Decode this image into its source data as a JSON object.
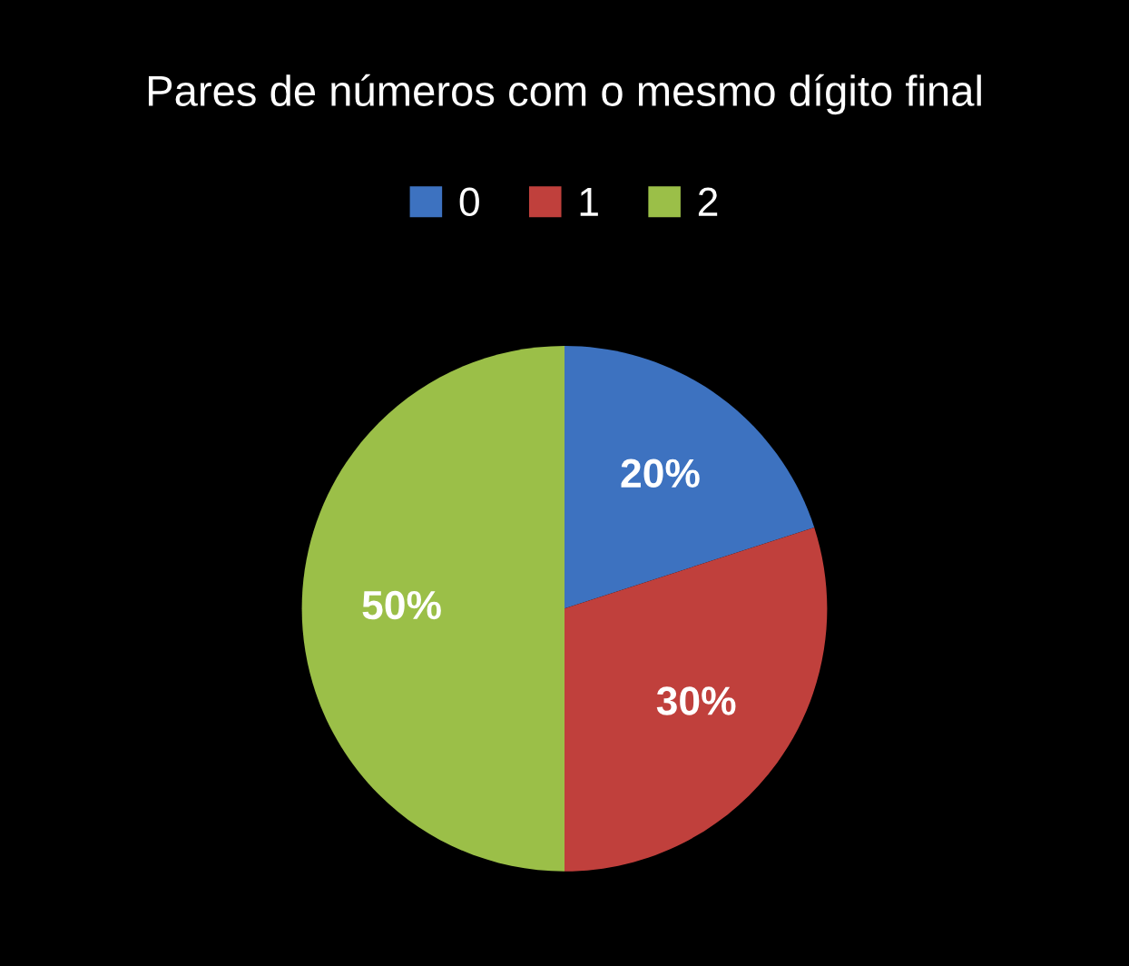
{
  "chart_data": {
    "type": "pie",
    "title": "Pares de números com o mesmo dígito final",
    "categories": [
      "0",
      "1",
      "2"
    ],
    "values": [
      20,
      30,
      50
    ],
    "colors": [
      "#3d72c0",
      "#c0403c",
      "#9bbf48"
    ],
    "value_labels": [
      "20%",
      "30%",
      "50%"
    ],
    "legend": "top"
  }
}
